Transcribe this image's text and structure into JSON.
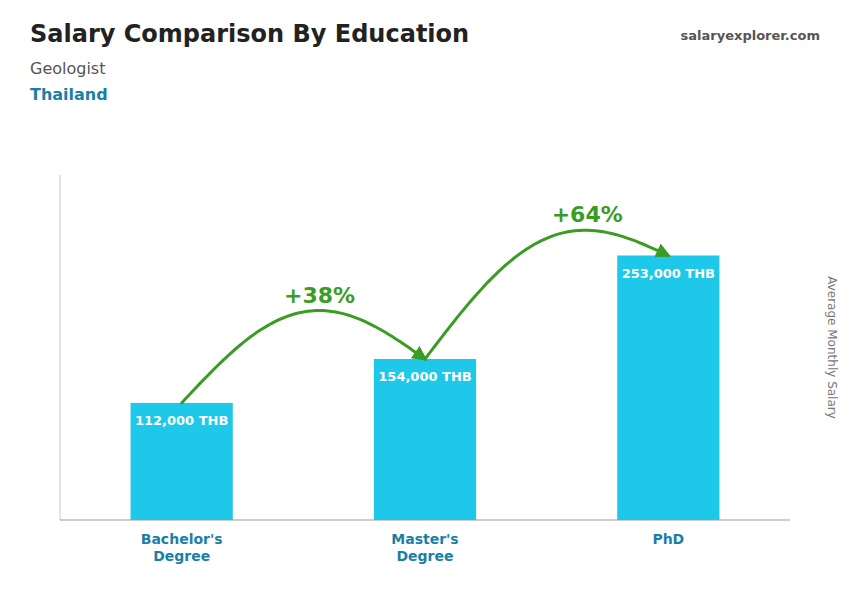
{
  "chart_data": {
    "type": "bar",
    "title": "Salary Comparison By Education",
    "subtitle": [
      "Geologist",
      "Thailand"
    ],
    "source": "salaryexplorer.com",
    "ylabel": "Average Monthly Salary",
    "categories": [
      "Bachelor's\nDegree",
      "Master's\nDegree",
      "PhD"
    ],
    "values": [
      112000,
      154000,
      253000
    ],
    "value_labels": [
      "112,000 THB",
      "154,000 THB",
      "253,000 THB"
    ],
    "data_labels": true,
    "annotations": [
      "+38%",
      "+64%"
    ],
    "color": "#1ec8e8",
    "ylim": [
      0,
      330000
    ],
    "tick_labels": "x",
    "grid": false
  }
}
